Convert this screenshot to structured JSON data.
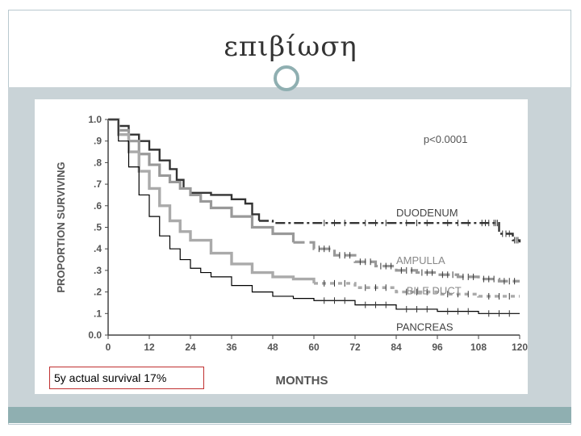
{
  "slide": {
    "title": "επιβίωση",
    "callout": "5y actual survival 17%"
  },
  "chart_data": {
    "type": "line",
    "title": "",
    "xlabel": "MONTHS",
    "ylabel": "PROPORTION SURVIVING",
    "xlim": [
      0,
      120
    ],
    "ylim": [
      0.0,
      1.0
    ],
    "xticks": [
      "0",
      "12",
      "24",
      "36",
      "48",
      "60",
      "72",
      "84",
      "96",
      "108",
      "120"
    ],
    "yticks": [
      "0.0",
      ".1",
      ".2",
      ".3",
      ".4",
      ".5",
      ".6",
      ".7",
      ".8",
      ".9",
      "1.0"
    ],
    "annotation": "p<0.0001",
    "series": [
      {
        "name": "DUODENUM",
        "color": "#333333",
        "x": [
          0,
          3,
          6,
          9,
          12,
          15,
          18,
          20,
          22,
          24,
          30,
          36,
          40,
          42,
          44,
          48,
          60,
          72,
          84,
          96,
          108,
          112,
          114,
          118,
          120
        ],
        "y": [
          1.0,
          0.97,
          0.93,
          0.9,
          0.86,
          0.81,
          0.77,
          0.72,
          0.68,
          0.66,
          0.65,
          0.63,
          0.61,
          0.56,
          0.53,
          0.52,
          0.52,
          0.52,
          0.52,
          0.52,
          0.52,
          0.52,
          0.47,
          0.44,
          0.43
        ]
      },
      {
        "name": "AMPULLA",
        "color": "#999999",
        "x": [
          0,
          3,
          6,
          9,
          12,
          15,
          18,
          21,
          24,
          27,
          30,
          36,
          42,
          48,
          54,
          60,
          66,
          72,
          78,
          84,
          90,
          96,
          102,
          108,
          114,
          120
        ],
        "y": [
          1.0,
          0.95,
          0.9,
          0.84,
          0.79,
          0.74,
          0.71,
          0.68,
          0.65,
          0.62,
          0.59,
          0.55,
          0.5,
          0.47,
          0.43,
          0.4,
          0.37,
          0.34,
          0.32,
          0.3,
          0.29,
          0.28,
          0.27,
          0.26,
          0.25,
          0.25
        ]
      },
      {
        "name": "BILE DUCT",
        "color": "#aaaaaa",
        "x": [
          0,
          3,
          6,
          9,
          12,
          15,
          18,
          21,
          24,
          30,
          36,
          42,
          48,
          54,
          60,
          72,
          84,
          96,
          108,
          120
        ],
        "y": [
          1.0,
          0.93,
          0.85,
          0.76,
          0.68,
          0.6,
          0.53,
          0.48,
          0.44,
          0.38,
          0.33,
          0.29,
          0.27,
          0.26,
          0.24,
          0.22,
          0.2,
          0.19,
          0.18,
          0.18
        ]
      },
      {
        "name": "PANCREAS",
        "color": "#000000",
        "x": [
          0,
          3,
          6,
          9,
          12,
          15,
          18,
          21,
          24,
          27,
          30,
          36,
          42,
          48,
          54,
          60,
          72,
          84,
          96,
          108,
          120
        ],
        "y": [
          1.0,
          0.9,
          0.78,
          0.65,
          0.55,
          0.46,
          0.4,
          0.35,
          0.31,
          0.29,
          0.27,
          0.23,
          0.2,
          0.18,
          0.17,
          0.16,
          0.14,
          0.12,
          0.11,
          0.1,
          0.1
        ]
      }
    ]
  }
}
